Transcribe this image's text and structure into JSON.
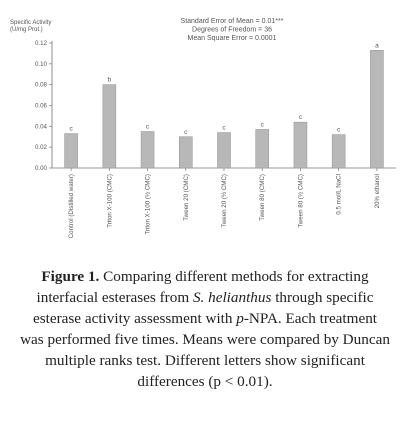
{
  "chart_data": {
    "type": "bar",
    "ylabel": "Specific Activity (U/mg Prot.)",
    "ylim": [
      0,
      0.12
    ],
    "yticks": [
      "0.00",
      "0.02",
      "0.04",
      "0.06",
      "0.08",
      "0.10",
      "0.12"
    ],
    "grid": false,
    "categories": [
      "Control (Distilled water)",
      "Triton X-100 (CMC)",
      "Triton X-100 (½ CMC)",
      "Tween 20 (CMC)",
      "Tween 20 (½ CMC)",
      "Tween 80 (CMC)",
      "Tween 80 (½ CMC)",
      "0.5 mol/L NaCl",
      "20% ethanol"
    ],
    "values": [
      0.033,
      0.08,
      0.035,
      0.03,
      0.034,
      0.037,
      0.044,
      0.032,
      0.113
    ],
    "letters": [
      "c",
      "b",
      "c",
      "c",
      "c",
      "c",
      "c",
      "c",
      "a"
    ],
    "stats": [
      "Standard Error of Mean = 0.01***",
      "Degrees of Freedom = 36",
      "Mean Square Error = 0.0001"
    ],
    "bar_color": "#b8b8b8"
  },
  "caption": {
    "label": "Figure 1.",
    "part1": " Comparing different methods for extracting interfacial esterases from ",
    "species": "S. helianthus",
    "part2": " through specific esterase activity assessment with ",
    "substrate_prefix": "p",
    "part3": "-NPA. Each treatment was performed five times. Means were compared by Duncan multiple ranks test. Different letters show significant differences (p < 0.01)."
  }
}
